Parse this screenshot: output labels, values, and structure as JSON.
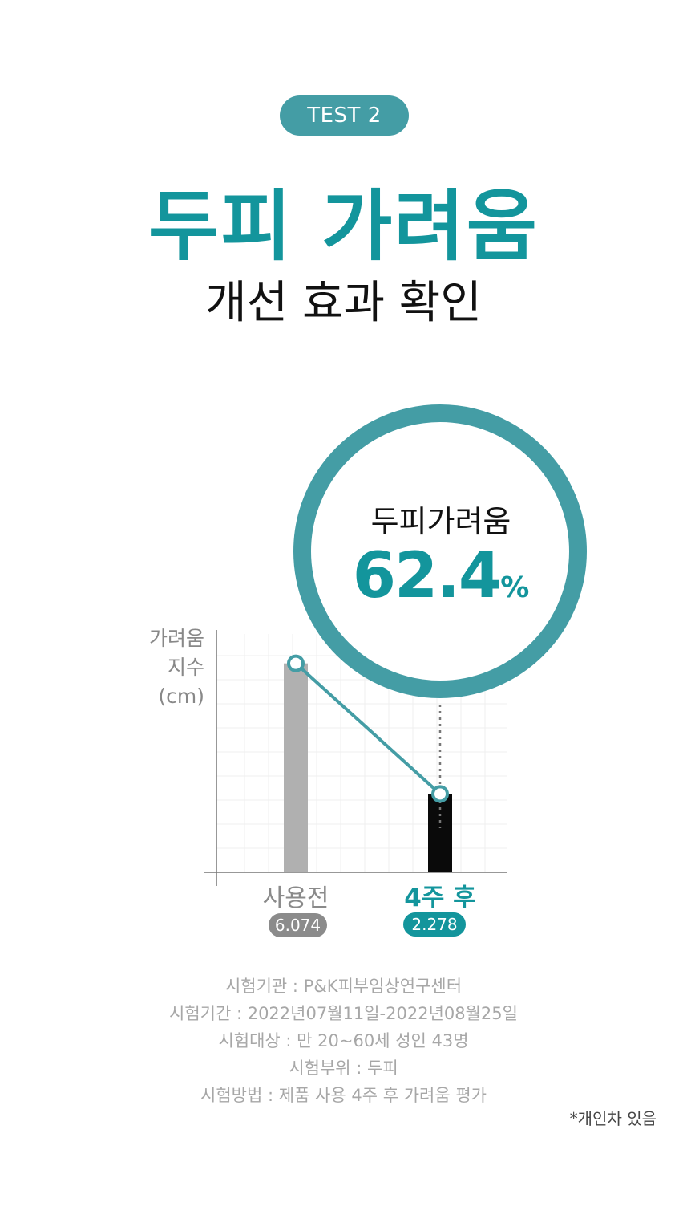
{
  "badge": {
    "label": "TEST 2"
  },
  "title": {
    "main": "두피 가려움",
    "sub": "개선 효과 확인"
  },
  "highlight": {
    "label": "두피가려움",
    "value": "62.4",
    "unit": "%"
  },
  "chart_data": {
    "type": "bar",
    "ylabel_lines": [
      "가려움",
      "지수",
      "(cm)"
    ],
    "categories": [
      "사용전",
      "4주 후"
    ],
    "values": [
      6.074,
      2.278
    ],
    "value_labels": [
      "6.074",
      "2.278"
    ],
    "ylim": [
      0,
      7
    ],
    "grid": true,
    "bar_colors": [
      "#b0b0b0",
      "#0a0a0a"
    ],
    "line_color": "#449da5",
    "reduction_percent": 62.4
  },
  "study_info": {
    "lines": [
      "시험기관 : P&K피부임상연구센터",
      "시험기간 : 2022년07월11일-2022년08월25일",
      "시험대상 : 만 20~60세 성인 43명",
      "시험부위 : 두피",
      "시험방법 : 제품 사용 4주 후 가려움 평가"
    ]
  },
  "note": "*개인차 있음",
  "colors": {
    "accent": "#13959c",
    "ring": "#449da5",
    "text_dark": "#111111",
    "text_gray": "#a7a7a7"
  }
}
